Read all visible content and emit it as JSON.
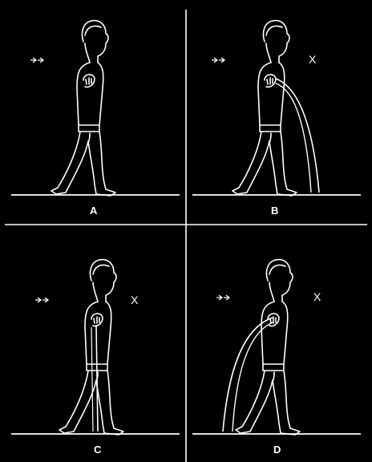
{
  "panels": [
    {
      "label": "A",
      "x_marker": "",
      "arc": "none"
    },
    {
      "label": "B",
      "x_marker": "X",
      "arc": "forward"
    },
    {
      "label": "C",
      "x_marker": "X",
      "arc": "vertical"
    },
    {
      "label": "D",
      "x_marker": "X",
      "arc": "backward"
    }
  ],
  "colors": {
    "background": "#000000",
    "line": "#ffffff"
  }
}
